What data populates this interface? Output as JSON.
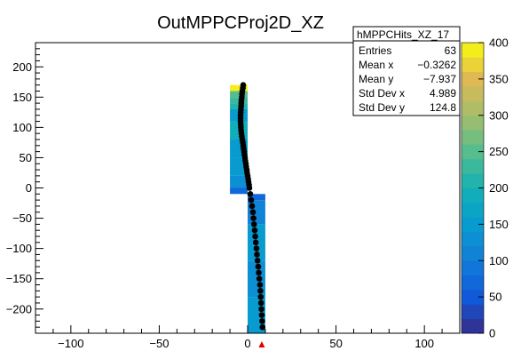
{
  "chart_data": {
    "type": "heatmap",
    "title": "OutMPPCProj2D_XZ",
    "xlabel": "",
    "ylabel": "",
    "xlim": [
      -120,
      120
    ],
    "ylim": [
      -240,
      240
    ],
    "x_ticks": [
      -100,
      -50,
      0,
      50,
      100
    ],
    "y_ticks": [
      -200,
      -150,
      -100,
      -50,
      0,
      50,
      100,
      150,
      200
    ],
    "colorbar": {
      "range": [
        0,
        400
      ],
      "ticks": [
        0,
        50,
        100,
        150,
        200,
        250,
        300,
        350,
        400
      ]
    },
    "cells": [
      {
        "x0": -10,
        "x1": 0,
        "y0": 160,
        "y1": 170,
        "value": 390
      },
      {
        "x0": -10,
        "x1": 0,
        "y0": 150,
        "y1": 160,
        "value": 250
      },
      {
        "x0": -10,
        "x1": 0,
        "y0": 140,
        "y1": 150,
        "value": 230
      },
      {
        "x0": -10,
        "x1": 0,
        "y0": 130,
        "y1": 140,
        "value": 210
      },
      {
        "x0": -10,
        "x1": 0,
        "y0": 110,
        "y1": 130,
        "value": 150
      },
      {
        "x0": -10,
        "x1": 0,
        "y0": 80,
        "y1": 110,
        "value": 190
      },
      {
        "x0": -10,
        "x1": 0,
        "y0": 50,
        "y1": 80,
        "value": 150
      },
      {
        "x0": -10,
        "x1": 0,
        "y0": 20,
        "y1": 50,
        "value": 140
      },
      {
        "x0": -10,
        "x1": 0,
        "y0": 0,
        "y1": 20,
        "value": 120
      },
      {
        "x0": -10,
        "x1": 0,
        "y0": -10,
        "y1": 0,
        "value": 70
      },
      {
        "x0": 0,
        "x1": 10,
        "y0": -20,
        "y1": -10,
        "value": 70
      },
      {
        "x0": 0,
        "x1": 10,
        "y0": -60,
        "y1": -20,
        "value": 100
      },
      {
        "x0": 0,
        "x1": 10,
        "y0": -120,
        "y1": -60,
        "value": 140
      },
      {
        "x0": 0,
        "x1": 10,
        "y0": -180,
        "y1": -120,
        "value": 130
      },
      {
        "x0": 0,
        "x1": 10,
        "y0": -240,
        "y1": -180,
        "value": 140
      }
    ],
    "series": [
      {
        "type": "scatter",
        "color": "#000000",
        "points": [
          [
            -2.5,
            170
          ],
          [
            -2.7,
            165
          ],
          [
            -3,
            160
          ],
          [
            -3.2,
            155
          ],
          [
            -3.3,
            150
          ],
          [
            -3.5,
            145
          ],
          [
            -3.6,
            140
          ],
          [
            -3.7,
            135
          ],
          [
            -3.8,
            130
          ],
          [
            -3.9,
            125
          ],
          [
            -4,
            120
          ],
          [
            -4,
            115
          ],
          [
            -4,
            110
          ],
          [
            -3.9,
            105
          ],
          [
            -3.8,
            100
          ],
          [
            -3.7,
            95
          ],
          [
            -3.5,
            90
          ],
          [
            -3.3,
            85
          ],
          [
            -3,
            80
          ],
          [
            -2.7,
            75
          ],
          [
            -2.5,
            70
          ],
          [
            -2.3,
            65
          ],
          [
            -2,
            60
          ],
          [
            -1.8,
            55
          ],
          [
            -1.5,
            50
          ],
          [
            -1.3,
            45
          ],
          [
            -1,
            40
          ],
          [
            -0.8,
            35
          ],
          [
            -0.5,
            30
          ],
          [
            -0.3,
            25
          ],
          [
            0,
            20
          ],
          [
            0.3,
            15
          ],
          [
            0.5,
            10
          ],
          [
            0.8,
            5
          ],
          [
            1,
            0
          ],
          [
            1.5,
            -10
          ],
          [
            2,
            -20
          ],
          [
            2.5,
            -30
          ],
          [
            3,
            -40
          ],
          [
            3.3,
            -50
          ],
          [
            3.6,
            -60
          ],
          [
            4,
            -70
          ],
          [
            4.3,
            -80
          ],
          [
            4.6,
            -90
          ],
          [
            5,
            -100
          ],
          [
            5.3,
            -110
          ],
          [
            5.6,
            -120
          ],
          [
            6,
            -130
          ],
          [
            6.3,
            -140
          ],
          [
            6.6,
            -150
          ],
          [
            7,
            -160
          ],
          [
            7.2,
            -170
          ],
          [
            7.4,
            -180
          ],
          [
            7.6,
            -190
          ],
          [
            7.8,
            -200
          ],
          [
            8,
            -210
          ],
          [
            8.2,
            -220
          ],
          [
            8.4,
            -230
          ]
        ]
      }
    ],
    "marker": {
      "x": 8,
      "color": "#e00000"
    },
    "stats_box": {
      "name": "hMPPCHits_XZ_17",
      "rows": [
        {
          "label": "Entries",
          "value": "63"
        },
        {
          "label": "Mean x",
          "value": "−0.3262"
        },
        {
          "label": "Mean y",
          "value": "−7.937"
        },
        {
          "label": "Std Dev x",
          "value": "4.989"
        },
        {
          "label": "Std Dev y",
          "value": "124.8"
        }
      ]
    }
  }
}
